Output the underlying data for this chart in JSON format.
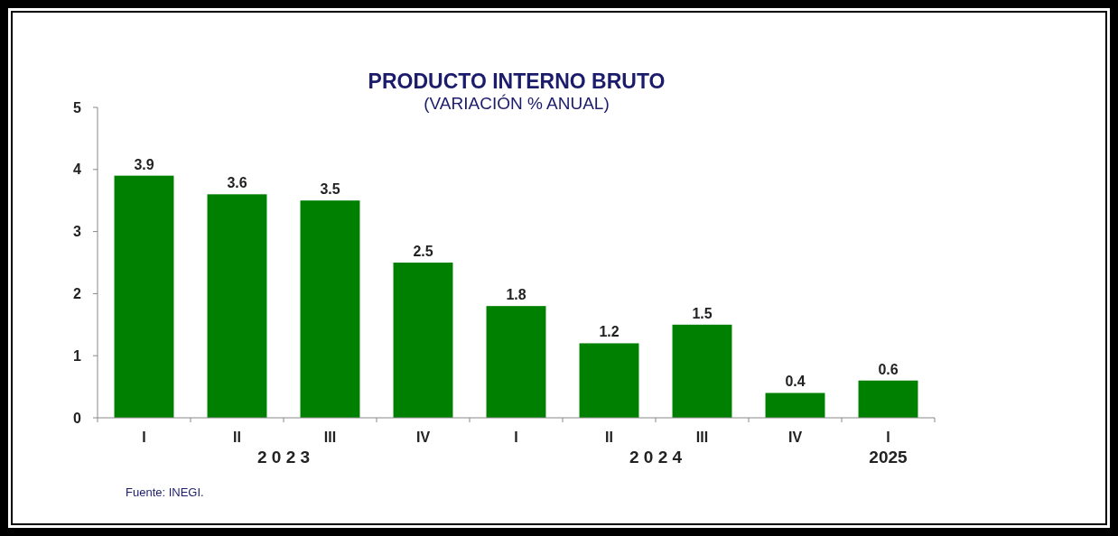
{
  "chart_data": {
    "type": "bar",
    "title": "PRODUCTO INTERNO BRUTO",
    "subtitle": "(VARIACIÓN % ANUAL)",
    "categories": [
      "I",
      "II",
      "III",
      "IV",
      "I",
      "II",
      "III",
      "IV",
      "I"
    ],
    "values": [
      3.9,
      3.6,
      3.5,
      2.5,
      1.8,
      1.2,
      1.5,
      0.4,
      0.6
    ],
    "color": "#008000",
    "ylim": [
      0,
      5
    ],
    "yticks": [
      0,
      1,
      2,
      3,
      4,
      5
    ],
    "grid": false,
    "data_labels": true,
    "annotations": [
      "2 0 2 3",
      "2 0 2 4",
      "2025",
      "Fuente: INEGI."
    ]
  }
}
